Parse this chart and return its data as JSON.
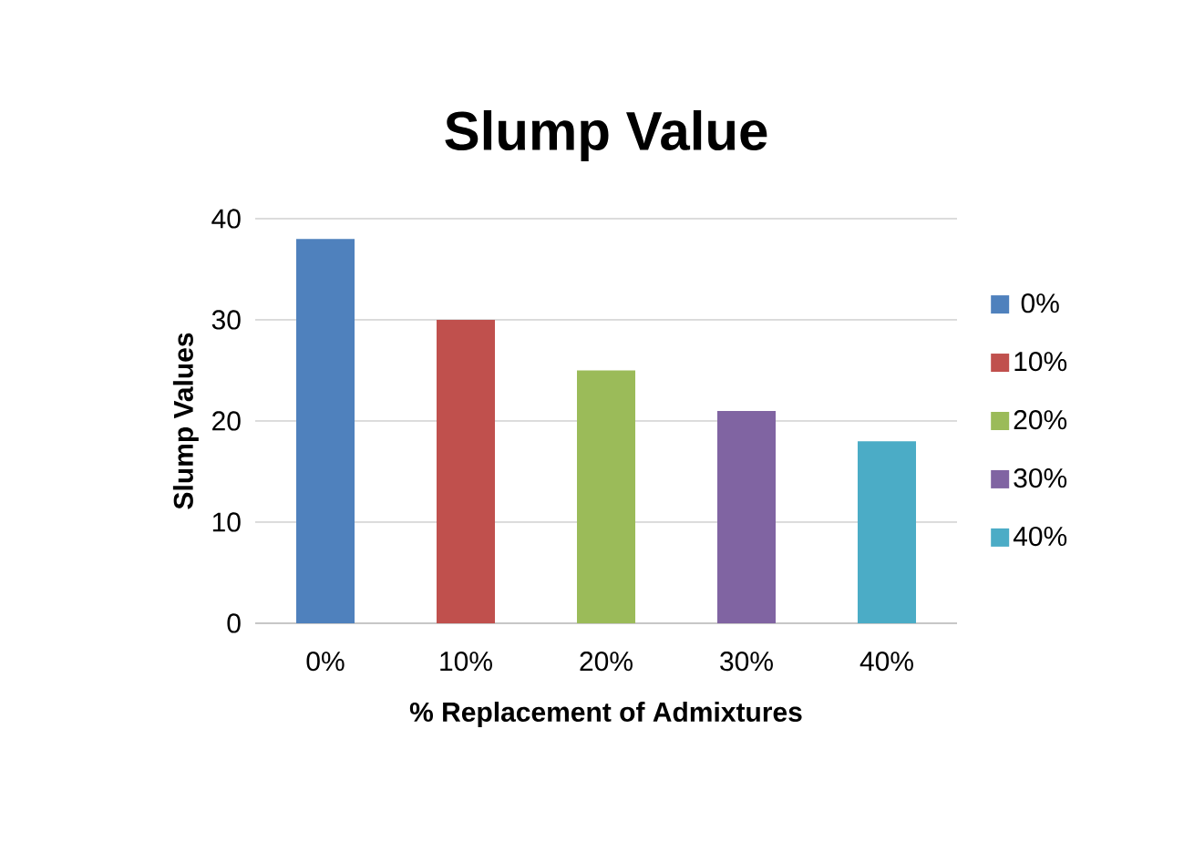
{
  "chart_data": {
    "type": "bar",
    "title": "Slump Value",
    "xlabel": "% Replacement of Admixtures",
    "ylabel": "Slump Values",
    "categories": [
      "0%",
      "10%",
      "20%",
      "30%",
      "40%"
    ],
    "series": [
      {
        "name": "0%",
        "color": "#4f81bd",
        "values": [
          38,
          null,
          null,
          null,
          null
        ]
      },
      {
        "name": "10%",
        "color": "#c0504d",
        "values": [
          null,
          30,
          null,
          null,
          null
        ]
      },
      {
        "name": "20%",
        "color": "#9bbb59",
        "values": [
          null,
          null,
          25,
          null,
          null
        ]
      },
      {
        "name": "30%",
        "color": "#8064a2",
        "values": [
          null,
          null,
          null,
          21,
          null
        ]
      },
      {
        "name": "40%",
        "color": "#4bacc6",
        "values": [
          null,
          null,
          null,
          null,
          18
        ]
      }
    ],
    "ylim": [
      0,
      40
    ],
    "yticks": [
      0,
      10,
      20,
      30,
      40
    ],
    "grid": "y",
    "legend": "right"
  }
}
